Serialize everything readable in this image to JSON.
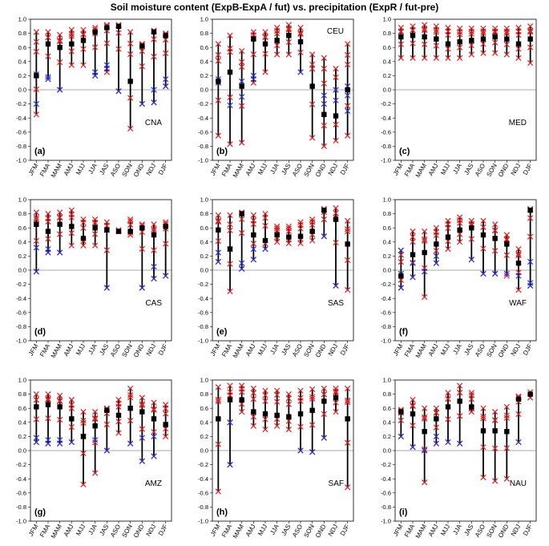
{
  "chart_data": {
    "type": "scatter",
    "title": "Soil moisture content (ExpB-ExpA / fut) vs. precipitation (ExpR / fut-pre)",
    "months": [
      "JFM",
      "FMA",
      "MAM",
      "AMJ",
      "MJJ",
      "JJA",
      "JAS",
      "ASO",
      "SON",
      "OND",
      "NDJ",
      "DJF"
    ],
    "ylim": [
      -1.0,
      1.0
    ],
    "yticks": [
      "1.0",
      "0.8",
      "0.6",
      "0.4",
      "0.2",
      "0.0",
      "-0.2",
      "-0.4",
      "-0.6",
      "-0.8",
      "-1.0"
    ],
    "ytick_values": [
      1.0,
      0.8,
      0.6,
      0.4,
      0.2,
      0.0,
      -0.2,
      -0.4,
      -0.6,
      -0.8,
      -1.0
    ],
    "panels": [
      {
        "letter": "(a)",
        "region": "CNA",
        "mean": [
          0.2,
          0.65,
          0.6,
          0.65,
          0.7,
          0.82,
          0.88,
          0.9,
          0.12,
          0.62,
          0.82,
          0.77
        ],
        "low": [
          -0.35,
          0.15,
          0.0,
          0.35,
          0.35,
          0.2,
          0.25,
          -0.02,
          -0.55,
          -0.2,
          -0.18,
          0.05
        ],
        "high": [
          0.82,
          0.82,
          0.78,
          0.85,
          0.85,
          0.88,
          0.92,
          0.92,
          0.82,
          0.65,
          0.84,
          0.8
        ],
        "blue": [
          [
            0.22,
            -0.2
          ],
          [
            0.15,
            0.18
          ],
          [
            0.0
          ],
          [],
          [],
          [
            0.2,
            0.25
          ],
          [
            0.3,
            0.35
          ],
          [
            -0.02
          ],
          [],
          [
            -0.2
          ],
          [
            -0.18,
            0.0
          ],
          [
            0.05,
            0.15
          ]
        ]
      },
      {
        "letter": "(b)",
        "region": "CEU",
        "mean": [
          0.12,
          0.25,
          0.05,
          0.72,
          0.65,
          0.7,
          0.77,
          0.68,
          0.05,
          -0.35,
          -0.37,
          0.0
        ],
        "low": [
          -0.65,
          -0.77,
          -0.75,
          0.1,
          0.25,
          0.5,
          0.5,
          0.25,
          -0.68,
          -0.8,
          -0.72,
          -0.65
        ],
        "high": [
          0.65,
          0.77,
          0.55,
          0.82,
          0.82,
          0.88,
          0.92,
          0.88,
          0.5,
          0.45,
          0.3,
          0.65
        ],
        "blue": [
          [
            0.1,
            0.15
          ],
          [
            -0.22
          ],
          [
            -0.1,
            0.12
          ],
          [
            0.15,
            0.2
          ],
          [],
          [],
          [],
          [
            0.25
          ],
          [],
          [
            -0.2,
            -0.08
          ],
          [
            -0.15,
            0.0
          ],
          [
            -0.3,
            -0.08,
            0.05
          ]
        ]
      },
      {
        "letter": "(c)",
        "region": "MED",
        "mean": [
          0.75,
          0.77,
          0.75,
          0.72,
          0.65,
          0.68,
          0.7,
          0.72,
          0.75,
          0.72,
          0.65,
          0.72
        ],
        "low": [
          0.45,
          0.45,
          0.45,
          0.45,
          0.45,
          0.45,
          0.5,
          0.52,
          0.52,
          0.5,
          0.45,
          0.38
        ],
        "high": [
          0.88,
          0.9,
          0.92,
          0.9,
          0.88,
          0.87,
          0.87,
          0.87,
          0.87,
          0.87,
          0.88,
          0.9
        ],
        "blue": [
          [],
          [],
          [],
          [],
          [],
          [],
          [],
          [],
          [],
          [],
          [],
          []
        ]
      },
      {
        "letter": "(d)",
        "region": "CAS",
        "mean": [
          0.65,
          0.55,
          0.65,
          0.62,
          0.45,
          0.6,
          0.57,
          0.55,
          0.55,
          0.6,
          0.5,
          0.62
        ],
        "low": [
          -0.02,
          0.25,
          0.25,
          0.35,
          0.35,
          0.35,
          -0.25,
          0.55,
          0.5,
          -0.25,
          -0.12,
          -0.08
        ],
        "high": [
          0.82,
          0.8,
          0.82,
          0.85,
          0.72,
          0.72,
          0.68,
          0.57,
          0.72,
          0.65,
          0.65,
          0.68
        ],
        "blue": [
          [
            0.32,
            -0.02
          ],
          [
            0.25,
            0.3
          ],
          [
            0.25
          ],
          [],
          [],
          [],
          [
            -0.25
          ],
          [],
          [],
          [
            -0.25
          ],
          [
            -0.12,
            0.05
          ],
          [
            -0.08
          ]
        ]
      },
      {
        "letter": "(e)",
        "region": "SAS",
        "mean": [
          0.57,
          0.3,
          0.8,
          0.5,
          0.42,
          0.5,
          0.47,
          0.48,
          0.55,
          0.85,
          0.72,
          0.37
        ],
        "low": [
          0.12,
          -0.3,
          0.02,
          0.15,
          0.3,
          0.4,
          0.38,
          0.38,
          0.42,
          0.48,
          -0.22,
          -0.28
        ],
        "high": [
          0.78,
          0.78,
          0.82,
          0.78,
          0.8,
          0.62,
          0.62,
          0.68,
          0.72,
          0.87,
          0.88,
          0.7
        ],
        "blue": [
          [
            0.12,
            0.25
          ],
          [
            0.3
          ],
          [
            0.02,
            0.1
          ],
          [
            0.15,
            0.3
          ],
          [
            0.3
          ],
          [],
          [],
          [],
          [],
          [
            0.48
          ],
          [
            -0.22
          ],
          []
        ]
      },
      {
        "letter": "(f)",
        "region": "WAF",
        "mean": [
          -0.08,
          0.22,
          0.25,
          0.37,
          0.47,
          0.57,
          0.6,
          0.5,
          0.45,
          0.37,
          0.1,
          0.85
        ],
        "low": [
          -0.25,
          -0.1,
          -0.38,
          0.1,
          0.3,
          0.4,
          0.15,
          -0.05,
          -0.05,
          -0.08,
          -0.28,
          -0.22
        ],
        "high": [
          0.28,
          0.55,
          0.55,
          0.6,
          0.7,
          0.75,
          0.7,
          0.7,
          0.65,
          0.5,
          0.3,
          0.87
        ],
        "blue": [
          [
            -0.25,
            0.28,
            -0.05
          ],
          [
            -0.1,
            0.1
          ],
          [
            -0.02
          ],
          [
            0.1,
            0.2
          ],
          [],
          [],
          [
            0.15
          ],
          [
            -0.05
          ],
          [
            -0.05
          ],
          [
            -0.05
          ],
          [
            -0.08
          ],
          [
            -0.22,
            0.12,
            -0.18
          ]
        ]
      },
      {
        "letter": "(g)",
        "region": "AMZ",
        "mean": [
          0.62,
          0.65,
          0.62,
          0.45,
          0.2,
          0.35,
          0.57,
          0.5,
          0.6,
          0.55,
          0.45,
          0.37
        ],
        "low": [
          0.12,
          0.1,
          0.1,
          0.12,
          -0.48,
          -0.32,
          0.0,
          0.25,
          0.1,
          -0.15,
          -0.08,
          0.2
        ],
        "high": [
          0.8,
          0.8,
          0.78,
          0.72,
          0.55,
          0.55,
          0.6,
          0.72,
          0.88,
          0.75,
          0.68,
          0.65
        ],
        "blue": [
          [
            0.12,
            0.18
          ],
          [
            0.1,
            0.15
          ],
          [
            0.1,
            0.15
          ],
          [
            0.12
          ],
          [
            0.2
          ],
          [
            0.15
          ],
          [
            0.0
          ],
          [],
          [
            0.1
          ],
          [
            -0.15,
            0.18
          ],
          [
            -0.08,
            0.2
          ],
          []
        ]
      },
      {
        "letter": "(h)",
        "region": "SAF",
        "mean": [
          0.45,
          0.72,
          0.72,
          0.55,
          0.52,
          0.5,
          0.48,
          0.52,
          0.57,
          0.7,
          0.75,
          0.45
        ],
        "low": [
          -0.58,
          -0.2,
          0.55,
          0.35,
          0.3,
          0.35,
          0.3,
          0.0,
          -0.02,
          0.18,
          0.55,
          -0.52
        ],
        "high": [
          0.9,
          0.92,
          0.92,
          0.88,
          0.85,
          0.85,
          0.8,
          0.85,
          0.87,
          0.88,
          0.88,
          0.88
        ],
        "blue": [
          [],
          [
            0.4,
            -0.2
          ],
          [],
          [],
          [],
          [],
          [],
          [
            0.0
          ],
          [
            -0.02
          ],
          [
            0.18
          ],
          [],
          []
        ]
      },
      {
        "letter": "(i)",
        "region": "NAU",
        "mean": [
          0.55,
          0.52,
          0.27,
          0.45,
          0.62,
          0.7,
          0.62,
          0.28,
          0.28,
          0.27,
          0.73,
          0.8
        ],
        "low": [
          0.2,
          0.05,
          -0.45,
          0.1,
          0.12,
          0.1,
          0.55,
          -0.38,
          -0.43,
          -0.4,
          0.12,
          0.75
        ],
        "high": [
          0.58,
          0.72,
          0.6,
          0.6,
          0.82,
          0.92,
          0.82,
          0.6,
          0.55,
          0.62,
          0.77,
          0.83
        ],
        "blue": [
          [
            0.2
          ],
          [
            0.05
          ],
          [
            0.0
          ],
          [
            0.1,
            0.2
          ],
          [
            0.12
          ],
          [
            0.1
          ],
          [],
          [],
          [],
          [],
          [
            0.12
          ],
          []
        ]
      }
    ]
  }
}
